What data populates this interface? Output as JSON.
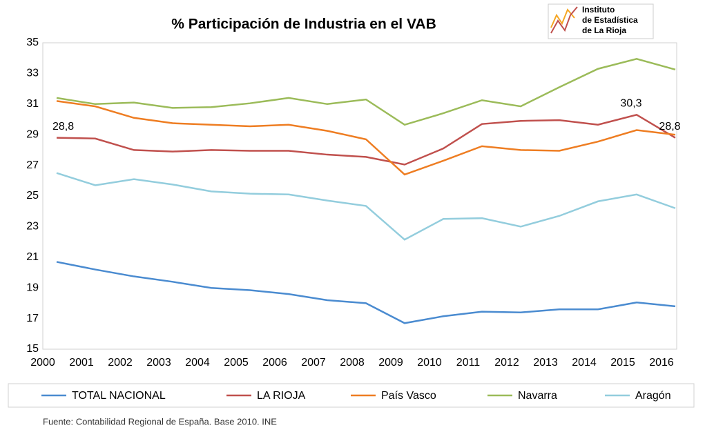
{
  "chart_data": {
    "type": "line",
    "title": "% Participación de Industria en el VAB",
    "logo": [
      "Instituto",
      "de Estadística",
      "de La Rioja"
    ],
    "source": "Fuente: Contabilidad Regional de España. Base 2010. INE",
    "categories": [
      "2000",
      "2001",
      "2002",
      "2003",
      "2004",
      "2005",
      "2006",
      "2007",
      "2008",
      "2009",
      "2010",
      "2011",
      "2012",
      "2013",
      "2014",
      "2015",
      "2016"
    ],
    "series": [
      {
        "name": "TOTAL NACIONAL",
        "color": "#4a8bd0",
        "values": [
          20.7,
          20.2,
          19.75,
          19.4,
          19.0,
          18.85,
          18.6,
          18.2,
          18.0,
          16.7,
          17.15,
          17.45,
          17.4,
          17.6,
          17.6,
          18.05,
          17.8
        ]
      },
      {
        "name": "LA RIOJA",
        "color": "#c0504d",
        "values": [
          28.8,
          28.75,
          28.0,
          27.9,
          28.0,
          27.95,
          27.95,
          27.7,
          27.55,
          27.05,
          28.1,
          29.7,
          29.9,
          29.95,
          29.65,
          30.3,
          28.8
        ],
        "value_labels": [
          "28,8",
          null,
          null,
          null,
          null,
          null,
          null,
          null,
          null,
          null,
          null,
          null,
          null,
          null,
          null,
          "30,3",
          "28,8"
        ]
      },
      {
        "name": "País Vasco",
        "color": "#ee7d22",
        "values": [
          31.2,
          30.85,
          30.1,
          29.75,
          29.65,
          29.55,
          29.65,
          29.25,
          28.7,
          26.4,
          27.3,
          28.25,
          28.0,
          27.95,
          28.55,
          29.3,
          29.0
        ]
      },
      {
        "name": "Navarra",
        "color": "#9bbb59",
        "values": [
          31.4,
          31.0,
          31.1,
          30.75,
          30.8,
          31.05,
          31.4,
          31.0,
          31.3,
          29.65,
          30.4,
          31.25,
          30.85,
          32.1,
          33.3,
          33.95,
          33.25
        ]
      },
      {
        "name": "Aragón",
        "color": "#93cddd",
        "values": [
          26.5,
          25.7,
          26.1,
          25.75,
          25.3,
          25.15,
          25.1,
          24.7,
          24.35,
          22.15,
          23.5,
          23.55,
          23.0,
          23.7,
          24.65,
          25.1,
          24.2
        ]
      }
    ],
    "ylim": [
      15,
      35
    ],
    "yticks": [
      15,
      17,
      19,
      21,
      23,
      25,
      27,
      29,
      31,
      33,
      35
    ],
    "grid": false
  }
}
